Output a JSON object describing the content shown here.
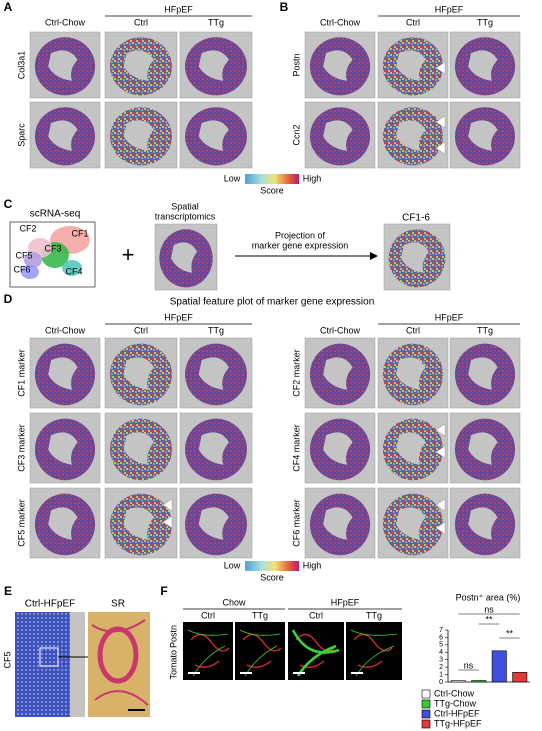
{
  "panels": {
    "A": {
      "label": "A",
      "group_header": "HFpEF",
      "columns": [
        "Ctrl-Chow",
        "Ctrl",
        "TTg"
      ],
      "rows": [
        "Col3a1",
        "Sparc"
      ]
    },
    "B": {
      "label": "B",
      "group_header": "HFpEF",
      "columns": [
        "Ctrl-Chow",
        "Ctrl",
        "TTg"
      ],
      "rows": [
        "Postn",
        "Ccn2"
      ]
    },
    "colorbar1": {
      "low": "Low",
      "high": "High",
      "title": "Score"
    },
    "C": {
      "label": "C",
      "scrna_title": "scRNA-seq",
      "clusters": [
        "CF1",
        "CF2",
        "CF3",
        "CF4",
        "CF5",
        "CF6"
      ],
      "plus": "+",
      "spatial_title": [
        "Spatial",
        "transcriptomics"
      ],
      "projection_text": [
        "Projection of",
        "marker gene expression"
      ],
      "result_title": "CF1-6"
    },
    "D": {
      "label": "D",
      "title": "Spatial feature plot of marker gene expression",
      "left": {
        "group_header": "HFpEF",
        "columns": [
          "Ctrl-Chow",
          "Ctrl",
          "TTg"
        ],
        "rows": [
          "CF1 marker",
          "CF3 marker",
          "CF5 marker"
        ]
      },
      "right": {
        "group_header": "HFpEF",
        "columns": [
          "Ctrl-Chow",
          "Ctrl",
          "TTg"
        ],
        "rows": [
          "CF2 marker",
          "CF4 marker",
          "CF6 marker"
        ]
      }
    },
    "colorbar2": {
      "low": "Low",
      "high": "High",
      "title": "Score"
    },
    "E": {
      "label": "E",
      "columns": [
        "Ctrl-HFpEF",
        "SR"
      ],
      "row": "CF5"
    },
    "F": {
      "label": "F",
      "groups": [
        {
          "name": "Chow",
          "columns": [
            "Ctrl",
            "TTg"
          ]
        },
        {
          "name": "HFpEF",
          "columns": [
            "Ctrl",
            "TTg"
          ]
        }
      ],
      "stain_labels": [
        "Tomato",
        "Postn"
      ]
    }
  },
  "chart_data": {
    "type": "bar",
    "title": "Postn⁺ area (%)",
    "categories": [
      "Ctrl-Chow",
      "TTg-Chow",
      "Ctrl-HFpEF",
      "TTg-HFpEF"
    ],
    "values": [
      0.2,
      0.2,
      4.2,
      1.3
    ],
    "colors": [
      "#ffffff",
      "#33cc33",
      "#3f4fe0",
      "#e03a3a"
    ],
    "ylim": [
      0,
      7
    ],
    "yticks": [
      0,
      1,
      2,
      3,
      4,
      5,
      6,
      7
    ],
    "annotations": [
      "ns",
      "**",
      "**",
      "ns"
    ]
  }
}
